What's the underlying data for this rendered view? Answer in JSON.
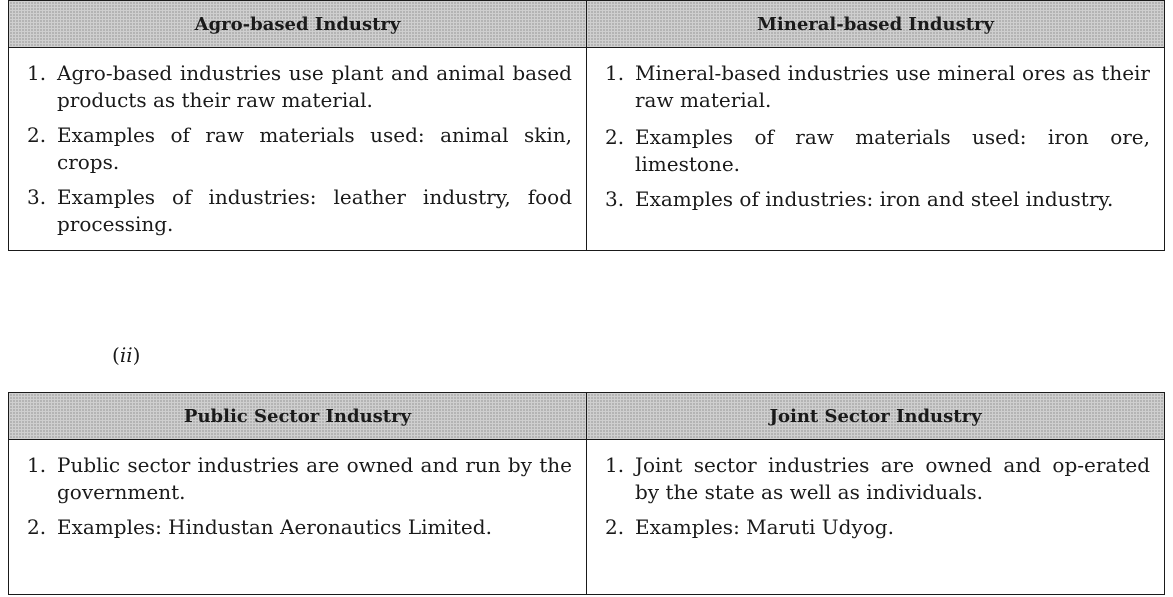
{
  "table1": {
    "headers": [
      "Agro-based Industry",
      "Mineral-based Industry"
    ],
    "columns": [
      [
        {
          "num": "1.",
          "text": "Agro-based industries use plant and animal based products as their raw material."
        },
        {
          "num": "2.",
          "text": "Examples of raw materials used: animal skin, crops."
        },
        {
          "num": "3.",
          "text": "Examples of industries: leather industry, food processing."
        }
      ],
      [
        {
          "num": "1.",
          "text": "Mineral-based industries use mineral ores as their raw material."
        },
        {
          "num": "2.",
          "text": "Examples of raw materials used: iron ore, limestone."
        },
        {
          "num": "3.",
          "text": "Examples of industries: iron and steel industry."
        }
      ]
    ]
  },
  "part_label": {
    "open": "(",
    "roman": "ii",
    "close": ")"
  },
  "table2": {
    "headers": [
      "Public Sector Industry",
      "Joint Sector Industry"
    ],
    "columns": [
      [
        {
          "num": "1.",
          "text": "Public sector industries are owned and run by the government."
        },
        {
          "num": "2.",
          "text": "Examples: Hindustan Aeronautics Limited."
        }
      ],
      [
        {
          "num": "1.",
          "text": "Joint sector industries are owned and op-erated by the state as well as individuals."
        },
        {
          "num": "2.",
          "text": "Examples: Maruti Udyog."
        }
      ]
    ]
  }
}
